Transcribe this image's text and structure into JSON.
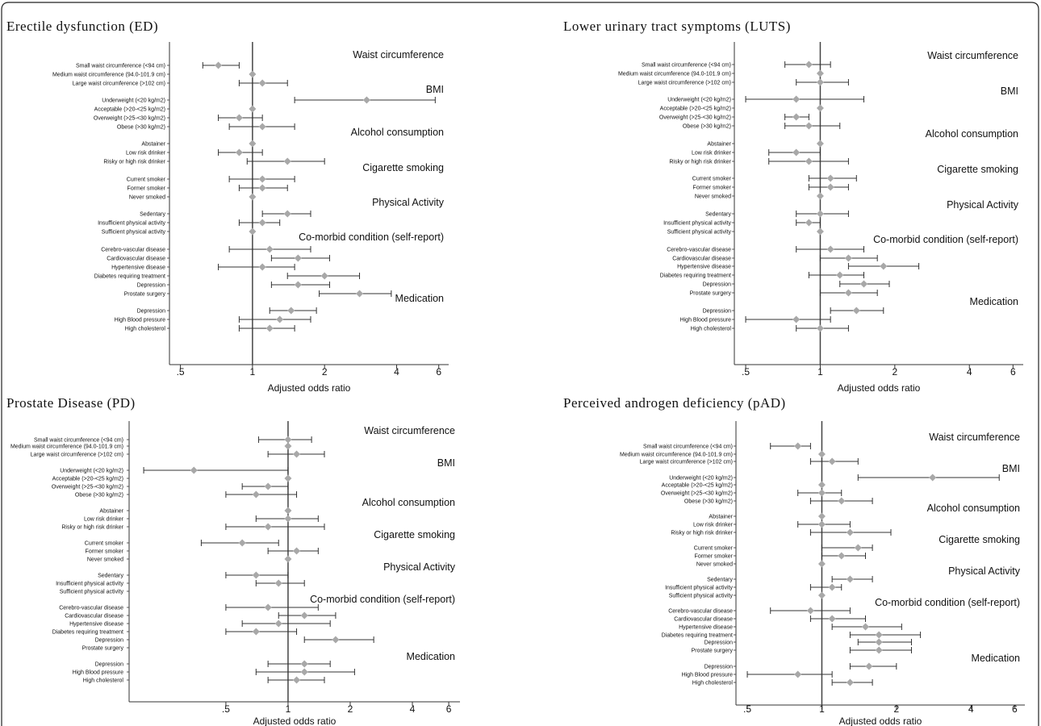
{
  "chart_data": [
    {
      "type": "forest",
      "title": "Erectile dysfunction (ED)",
      "xlabel": "Adjusted odds ratio",
      "xscale": "log",
      "xlim": [
        0.45,
        6.6
      ],
      "xticks": [
        ".5",
        "1",
        "2",
        "4",
        "6"
      ],
      "groups": [
        {
          "name": "Waist circumference",
          "rows": [
            {
              "label": "Small waist circumference (<94 cm)",
              "or": 0.72,
              "lo": 0.62,
              "hi": 0.88
            },
            {
              "label": "Medium waist circumference (94.0-101.9 cm)",
              "or": 1.0,
              "lo": null,
              "hi": null
            },
            {
              "label": "Large waist circumference (>102 cm)",
              "or": 1.1,
              "lo": 0.88,
              "hi": 1.4
            }
          ]
        },
        {
          "name": "BMI",
          "rows": [
            {
              "label": "Underweight (<20 kg/m2)",
              "or": 3.0,
              "lo": 1.5,
              "hi": 5.8
            },
            {
              "label": "Acceptable (>20-<25 kg/m2)",
              "or": 1.0,
              "lo": null,
              "hi": null
            },
            {
              "label": "Overweight (>25-<30 kg/m2)",
              "or": 0.88,
              "lo": 0.72,
              "hi": 1.1
            },
            {
              "label": "Obese (>30 kg/m2)",
              "or": 1.1,
              "lo": 0.8,
              "hi": 1.5
            }
          ]
        },
        {
          "name": "Alcohol consumption",
          "rows": [
            {
              "label": "Abstainer",
              "or": 1.0,
              "lo": null,
              "hi": null
            },
            {
              "label": "Low risk drinker",
              "or": 0.88,
              "lo": 0.72,
              "hi": 1.1
            },
            {
              "label": "Risky or high risk drinker",
              "or": 1.4,
              "lo": 0.95,
              "hi": 2.0
            }
          ]
        },
        {
          "name": "Cigarette smoking",
          "rows": [
            {
              "label": "Current smoker",
              "or": 1.1,
              "lo": 0.8,
              "hi": 1.5
            },
            {
              "label": "Former smoker",
              "or": 1.1,
              "lo": 0.88,
              "hi": 1.4
            },
            {
              "label": "Never smoked",
              "or": 1.0,
              "lo": null,
              "hi": null
            }
          ]
        },
        {
          "name": "Physical Activity",
          "rows": [
            {
              "label": "Sedentary",
              "or": 1.4,
              "lo": 1.1,
              "hi": 1.75
            },
            {
              "label": "Insufficient physical activity",
              "or": 1.1,
              "lo": 0.88,
              "hi": 1.3
            },
            {
              "label": "Sufficient physical activity",
              "or": 1.0,
              "lo": null,
              "hi": null
            }
          ]
        },
        {
          "name": "Co-morbid condition (self-report)",
          "rows": [
            {
              "label": "Cerebro-vascular disease",
              "or": 1.18,
              "lo": 0.8,
              "hi": 1.75
            },
            {
              "label": "Cardiovascular disease",
              "or": 1.55,
              "lo": 1.2,
              "hi": 2.1
            },
            {
              "label": "Hypertensive disease",
              "or": 1.1,
              "lo": 0.72,
              "hi": 1.5
            },
            {
              "label": "Diabetes requiring treatment",
              "or": 2.0,
              "lo": 1.4,
              "hi": 2.8
            },
            {
              "label": "Depression",
              "or": 1.55,
              "lo": 1.2,
              "hi": 2.1
            },
            {
              "label": "Prostate surgery",
              "or": 2.8,
              "lo": 1.9,
              "hi": 3.8
            }
          ]
        },
        {
          "name": "Medication",
          "rows": [
            {
              "label": "Depression",
              "or": 1.45,
              "lo": 1.18,
              "hi": 1.85
            },
            {
              "label": "High Blood pressure",
              "or": 1.3,
              "lo": 0.88,
              "hi": 1.75
            },
            {
              "label": "High cholesterol",
              "or": 1.18,
              "lo": 0.88,
              "hi": 1.5
            }
          ]
        }
      ]
    },
    {
      "type": "forest",
      "title": "Lower urinary tract symptoms (LUTS)",
      "xlabel": "Adjusted odds ratio",
      "xscale": "log",
      "xlim": [
        0.45,
        6.6
      ],
      "xticks": [
        ".5",
        "1",
        "2",
        "4",
        "6"
      ],
      "groups": [
        {
          "name": "Waist circumference",
          "rows": [
            {
              "label": "Small waist circumference (<94 cm)",
              "or": 0.9,
              "lo": 0.72,
              "hi": 1.1
            },
            {
              "label": "Medium waist circumference (94.0-101.9 cm)",
              "or": 1.0,
              "lo": null,
              "hi": null
            },
            {
              "label": "Large waist circumference (>102 cm)",
              "or": 1.0,
              "lo": 0.8,
              "hi": 1.3
            }
          ]
        },
        {
          "name": "BMI",
          "rows": [
            {
              "label": "Underweight (<20 kg/m2)",
              "or": 0.8,
              "lo": 0.5,
              "hi": 1.5
            },
            {
              "label": "Acceptable (>20-<25 kg/m2)",
              "or": 1.0,
              "lo": null,
              "hi": null
            },
            {
              "label": "Overweight (>25-<30 kg/m2)",
              "or": 0.8,
              "lo": 0.72,
              "hi": 0.9
            },
            {
              "label": "Obese (>30 kg/m2)",
              "or": 0.9,
              "lo": 0.72,
              "hi": 1.2
            }
          ]
        },
        {
          "name": "Alcohol consumption",
          "rows": [
            {
              "label": "Abstainer",
              "or": 1.0,
              "lo": null,
              "hi": null
            },
            {
              "label": "Low risk drinker",
              "or": 0.8,
              "lo": 0.62,
              "hi": 1.0
            },
            {
              "label": "Risky or high risk drinker",
              "or": 0.9,
              "lo": 0.62,
              "hi": 1.3
            }
          ]
        },
        {
          "name": "Cigarette smoking",
          "rows": [
            {
              "label": "Current smoker",
              "or": 1.1,
              "lo": 0.9,
              "hi": 1.4
            },
            {
              "label": "Former smoker",
              "or": 1.1,
              "lo": 0.9,
              "hi": 1.3
            },
            {
              "label": "Never smoked",
              "or": 1.0,
              "lo": null,
              "hi": null
            }
          ]
        },
        {
          "name": "Physical Activity",
          "rows": [
            {
              "label": "Sedentary",
              "or": 1.0,
              "lo": 0.8,
              "hi": 1.3
            },
            {
              "label": "Insufficient physical activity",
              "or": 0.9,
              "lo": 0.8,
              "hi": 1.0
            },
            {
              "label": "Sufficient physical activity",
              "or": 1.0,
              "lo": null,
              "hi": null
            }
          ]
        },
        {
          "name": "Co-morbid condition (self-report)",
          "rows": [
            {
              "label": "Cerebro-vascular disease",
              "or": 1.1,
              "lo": 0.8,
              "hi": 1.5
            },
            {
              "label": "Cardiovascular disease",
              "or": 1.3,
              "lo": 1.0,
              "hi": 1.7
            },
            {
              "label": "Hypertensive disease",
              "or": 1.8,
              "lo": 1.3,
              "hi": 2.5
            },
            {
              "label": "Diabetes requiring treatment",
              "or": 1.2,
              "lo": 0.9,
              "hi": 1.5
            },
            {
              "label": "Depression",
              "or": 1.5,
              "lo": 1.2,
              "hi": 1.9
            },
            {
              "label": "Prostate surgery",
              "or": 1.3,
              "lo": 1.0,
              "hi": 1.7
            }
          ]
        },
        {
          "name": "Medication",
          "rows": [
            {
              "label": "Depression",
              "or": 1.4,
              "lo": 1.1,
              "hi": 1.8
            },
            {
              "label": "High Blood pressure",
              "or": 0.8,
              "lo": 0.5,
              "hi": 1.1
            },
            {
              "label": "High cholesterol",
              "or": 1.0,
              "lo": 0.8,
              "hi": 1.3
            }
          ]
        }
      ]
    },
    {
      "type": "forest",
      "title": "Prostate Disease (PD)",
      "xlabel": "Adjusted odds ratio",
      "xscale": "log",
      "xlim": [
        0.17,
        6.8
      ],
      "xticks": [
        ".5",
        "1",
        "2",
        "4",
        "6"
      ],
      "groups": [
        {
          "name": "Waist circumference",
          "rows": [
            {
              "label": "Small waist circumference (<94 cm)",
              "or": 1.0,
              "lo": 0.72,
              "hi": 1.3
            },
            {
              "label": "Medium waist circumference (94.0-101.9 cm)",
              "or": 1.0,
              "lo": null,
              "hi": null
            },
            {
              "label": "Large waist circumference (>102 cm)",
              "or": 1.1,
              "lo": 0.8,
              "hi": 1.5
            }
          ]
        },
        {
          "name": "BMI",
          "rows": [
            {
              "label": "Underweight (<20 kg/m2)",
              "or": 0.35,
              "lo": 0.2,
              "hi": 1.0
            },
            {
              "label": "Acceptable (>20-<25 kg/m2)",
              "or": 1.0,
              "lo": null,
              "hi": null
            },
            {
              "label": "Overweight (>25-<30 kg/m2)",
              "or": 0.8,
              "lo": 0.6,
              "hi": 1.0
            },
            {
              "label": "Obese (>30 kg/m2)",
              "or": 0.7,
              "lo": 0.5,
              "hi": 1.1
            }
          ]
        },
        {
          "name": "Alcohol consumption",
          "rows": [
            {
              "label": "Abstainer",
              "or": 1.0,
              "lo": null,
              "hi": null
            },
            {
              "label": "Low risk drinker",
              "or": 1.0,
              "lo": 0.7,
              "hi": 1.4
            },
            {
              "label": "Risky or high risk drinker",
              "or": 0.8,
              "lo": 0.5,
              "hi": 1.5
            }
          ]
        },
        {
          "name": "Cigarette smoking",
          "rows": [
            {
              "label": "Current smoker",
              "or": 0.6,
              "lo": 0.38,
              "hi": 0.9
            },
            {
              "label": "Former smoker",
              "or": 1.1,
              "lo": 0.8,
              "hi": 1.4
            },
            {
              "label": "Never smoked",
              "or": 1.0,
              "lo": null,
              "hi": null
            }
          ]
        },
        {
          "name": "Physical Activity",
          "rows": [
            {
              "label": "Sedentary",
              "or": 0.7,
              "lo": 0.5,
              "hi": 1.0
            },
            {
              "label": "Insufficient physical activity",
              "or": 0.9,
              "lo": 0.7,
              "hi": 1.2
            }
          ]
        },
        {
          "name": "Co-morbid condition (self-report)",
          "rows": [
            {
              "label": "Cerebro-vascular disease",
              "or": 0.8,
              "lo": 0.5,
              "hi": 1.4
            },
            {
              "label": "Cardiovascular disease",
              "or": 1.2,
              "lo": 0.9,
              "hi": 1.7
            },
            {
              "label": "Hypertensive disease",
              "or": 0.9,
              "lo": 0.6,
              "hi": 1.6
            },
            {
              "label": "Diabetes requiring treatment",
              "or": 0.7,
              "lo": 0.5,
              "hi": 1.1
            },
            {
              "label": "Depression",
              "or": 1.7,
              "lo": 1.2,
              "hi": 2.6
            }
          ]
        },
        {
          "name": "Medication",
          "rows": [
            {
              "label": "Depression",
              "or": 1.2,
              "lo": 0.8,
              "hi": 1.6
            },
            {
              "label": "High Blood pressure",
              "or": 1.2,
              "lo": 0.7,
              "hi": 2.1
            },
            {
              "label": "High cholesterol",
              "or": 1.1,
              "lo": 0.8,
              "hi": 1.5
            }
          ]
        }
      ],
      "extra_labels": [
        "Sufficient physical activity",
        "Prostate surgery"
      ]
    },
    {
      "type": "forest",
      "title": "Perceived androgen deficiency (pAD)",
      "xlabel": "Adjusted odds ratio",
      "xscale": "log",
      "xlim": [
        0.45,
        6.6
      ],
      "xticks": [
        ".5",
        "1",
        "2",
        "4",
        "6"
      ],
      "groups": [
        {
          "name": "Waist circumference",
          "rows": [
            {
              "label": "Small waist circumference (<94 cm)",
              "or": 0.8,
              "lo": 0.62,
              "hi": 0.9
            },
            {
              "label": "Medium waist circumference (94.0-101.9 cm)",
              "or": 1.0,
              "lo": null,
              "hi": null
            },
            {
              "label": "Large waist circumference (>102 cm)",
              "or": 1.1,
              "lo": 0.9,
              "hi": 1.4
            }
          ]
        },
        {
          "name": "BMI",
          "rows": [
            {
              "label": "Underweight (<20 kg/m2)",
              "or": 2.8,
              "lo": 1.4,
              "hi": 5.2
            },
            {
              "label": "Acceptable (>20-<25 kg/m2)",
              "or": 1.0,
              "lo": null,
              "hi": null
            },
            {
              "label": "Overweight (>25-<30 kg/m2)",
              "or": 1.0,
              "lo": 0.8,
              "hi": 1.2
            },
            {
              "label": "Obese (>30 kg/m2)",
              "or": 1.2,
              "lo": 0.9,
              "hi": 1.6
            }
          ]
        },
        {
          "name": "Alcohol consumption",
          "rows": [
            {
              "label": "Abstainer",
              "or": 1.0,
              "lo": null,
              "hi": null
            },
            {
              "label": "Low risk drinker",
              "or": 1.0,
              "lo": 0.8,
              "hi": 1.3
            },
            {
              "label": "Risky or high risk drinker",
              "or": 1.3,
              "lo": 0.9,
              "hi": 1.9
            }
          ]
        },
        {
          "name": "Cigarette smoking",
          "rows": [
            {
              "label": "Current smoker",
              "or": 1.4,
              "lo": 1.0,
              "hi": 1.6
            },
            {
              "label": "Former smoker",
              "or": 1.2,
              "lo": 1.0,
              "hi": 1.5
            },
            {
              "label": "Never smoked",
              "or": 1.0,
              "lo": null,
              "hi": null
            }
          ]
        },
        {
          "name": "Physical Activity",
          "rows": [
            {
              "label": "Sedentary",
              "or": 1.3,
              "lo": 1.1,
              "hi": 1.6
            },
            {
              "label": "Insufficient physical activity",
              "or": 1.1,
              "lo": 0.9,
              "hi": 1.2
            },
            {
              "label": "Sufficient physical activity",
              "or": 1.0,
              "lo": null,
              "hi": null
            }
          ]
        },
        {
          "name": "Co-morbid condition (self-report)",
          "rows": [
            {
              "label": "Cerebro-vascular disease",
              "or": 0.9,
              "lo": 0.62,
              "hi": 1.3
            },
            {
              "label": "Cardiovascular disease",
              "or": 1.1,
              "lo": 0.9,
              "hi": 1.5
            },
            {
              "label": "Hypertensive disease",
              "or": 1.5,
              "lo": 1.1,
              "hi": 2.1
            },
            {
              "label": "Diabetes requiring treatment",
              "or": 1.7,
              "lo": 1.3,
              "hi": 2.5
            },
            {
              "label": "Depression",
              "or": 1.7,
              "lo": 1.4,
              "hi": 2.3
            },
            {
              "label": "Prostate surgery",
              "or": 1.7,
              "lo": 1.3,
              "hi": 2.3
            }
          ]
        },
        {
          "name": "Medication",
          "rows": [
            {
              "label": "Depression",
              "or": 1.55,
              "lo": 1.3,
              "hi": 2.0
            },
            {
              "label": "High Blood pressure",
              "or": 0.8,
              "lo": 0.5,
              "hi": 1.1
            },
            {
              "label": "High cholesterol",
              "or": 1.3,
              "lo": 1.1,
              "hi": 1.6
            }
          ]
        }
      ]
    }
  ],
  "style": {
    "marker_color": "#a8a8a8",
    "line_color": "#333333",
    "reference_line_color": "#444444",
    "frame_color": "#222222"
  }
}
